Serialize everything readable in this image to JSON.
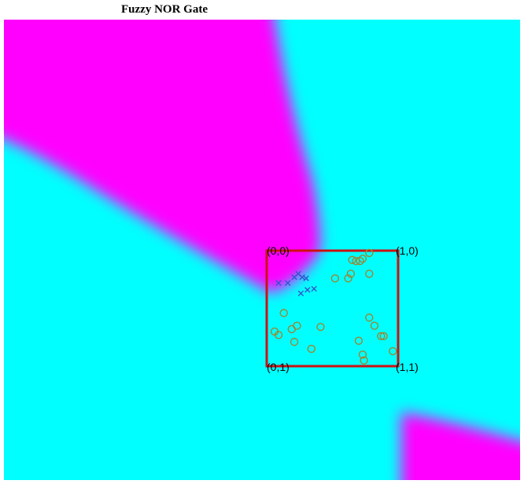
{
  "title": "Fuzzy NOR Gate",
  "colors": {
    "class_high": "#ff00ff",
    "class_low": "#00ffff",
    "box": "#cc1111",
    "x_marker": "#3355cc",
    "o_marker": "#998833"
  },
  "corners": {
    "top_left": "(0,0)",
    "top_right": "(1,0)",
    "bottom_left": "(0,1)",
    "bottom_right": "(1,1)"
  },
  "chart_data": {
    "type": "scatter",
    "title": "Fuzzy NOR Gate",
    "background": "decision regions",
    "series": [
      {
        "marker": "x",
        "color": "#3355cc",
        "points": [
          [
            0.21,
            0.23
          ],
          [
            0.24,
            0.2
          ],
          [
            0.27,
            0.23
          ],
          [
            0.3,
            0.24
          ],
          [
            0.09,
            0.28
          ],
          [
            0.16,
            0.28
          ],
          [
            0.26,
            0.37
          ],
          [
            0.31,
            0.34
          ],
          [
            0.36,
            0.33
          ]
        ]
      },
      {
        "marker": "o",
        "color": "#998833",
        "points": [
          [
            0.65,
            0.08
          ],
          [
            0.68,
            0.09
          ],
          [
            0.71,
            0.09
          ],
          [
            0.73,
            0.07
          ],
          [
            0.78,
            0.02
          ],
          [
            0.52,
            0.24
          ],
          [
            0.62,
            0.24
          ],
          [
            0.64,
            0.2
          ],
          [
            0.78,
            0.2
          ],
          [
            0.13,
            0.54
          ],
          [
            0.06,
            0.7
          ],
          [
            0.09,
            0.73
          ],
          [
            0.19,
            0.68
          ],
          [
            0.23,
            0.65
          ],
          [
            0.21,
            0.79
          ],
          [
            0.41,
            0.66
          ],
          [
            0.34,
            0.85
          ],
          [
            0.78,
            0.58
          ],
          [
            0.82,
            0.65
          ],
          [
            0.87,
            0.74
          ],
          [
            0.89,
            0.74
          ],
          [
            0.7,
            0.78
          ],
          [
            0.73,
            0.9
          ],
          [
            0.74,
            0.95
          ],
          [
            0.96,
            0.87
          ]
        ]
      }
    ]
  }
}
